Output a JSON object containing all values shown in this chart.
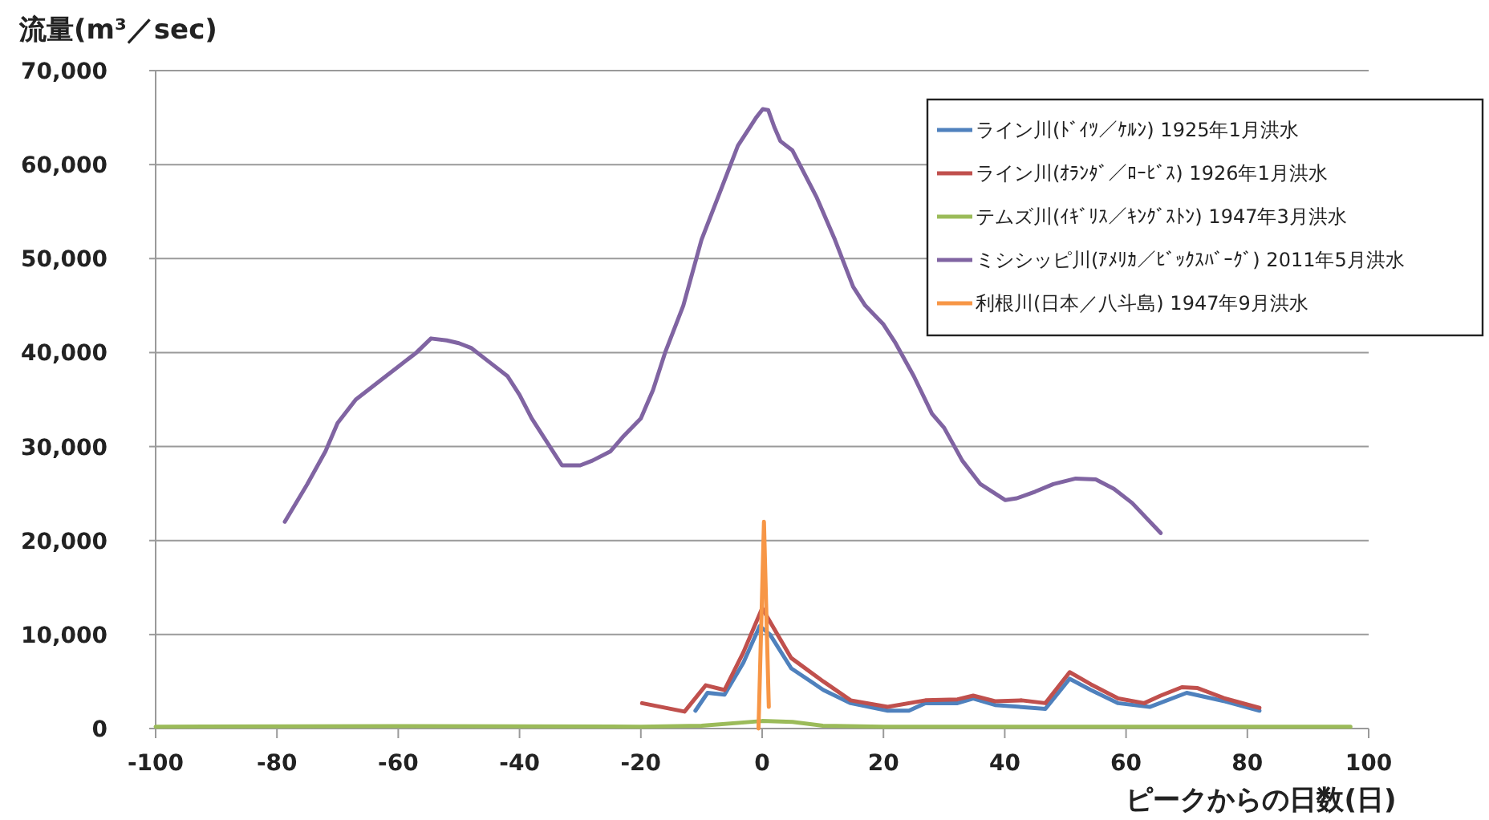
{
  "chart_data": {
    "type": "line",
    "ylabel": "流量(m³／sec)",
    "xlabel": "ピークからの日数(日)",
    "xlim": [
      -100,
      100
    ],
    "xticks": [
      -100,
      -80,
      -60,
      -40,
      -20,
      0,
      20,
      40,
      60,
      80,
      100
    ],
    "ylim": [
      0,
      70000
    ],
    "yticks": [
      0,
      {
        "value": 10000,
        "label": "10,000"
      },
      {
        "value": 20000,
        "label": "20,000"
      },
      {
        "value": 30000,
        "label": "30,000"
      },
      {
        "value": 40000,
        "label": "40,000"
      },
      {
        "value": 50000,
        "label": "50,000"
      },
      {
        "value": 60000,
        "label": "60,000"
      },
      {
        "value": 70000,
        "label": "70,000"
      }
    ],
    "grid": "y",
    "legend": "top right",
    "series": [
      {
        "name": "ライン川(ﾄﾞｲﾂ／ｹﾙﾝ) 1925年1月洪水",
        "color": "#4f81bd",
        "x": [
          -11,
          -9,
          -6.2,
          -3.1,
          -0.4,
          1.3,
          4.8,
          10.1,
          14.6,
          20.7,
          24.2,
          26.9,
          32.2,
          34.8,
          38.4,
          46.7,
          50.7,
          54.2,
          58.7,
          63.9,
          70,
          76.3,
          82
        ],
        "values": [
          1900,
          3800,
          3600,
          7000,
          10900,
          10000,
          6400,
          4100,
          2700,
          1900,
          1900,
          2700,
          2700,
          3200,
          2500,
          2100,
          5300,
          4100,
          2700,
          2300,
          3800,
          2900,
          1900
        ]
      },
      {
        "name": "ライン川(ｵﾗﾝﾀﾞ／ﾛｰﾋﾞｽ) 1926年1月洪水",
        "color": "#c0504d",
        "x": [
          -19.8,
          -12.8,
          -9.3,
          -6.2,
          -3.1,
          0,
          4.8,
          10.1,
          14.6,
          20.7,
          26.9,
          32.2,
          34.8,
          38.4,
          42.8,
          46.7,
          50.7,
          54.2,
          58.7,
          63,
          65.7,
          69.2,
          71.8,
          76.3,
          82
        ],
        "values": [
          2700,
          1800,
          4600,
          4100,
          8100,
          12800,
          7500,
          5000,
          3000,
          2300,
          3000,
          3100,
          3500,
          2900,
          3000,
          2700,
          6000,
          4700,
          3200,
          2700,
          3500,
          4400,
          4300,
          3200,
          2200
        ]
      },
      {
        "name": "テムズ川(ｲｷﾞﾘｽ／ｷﾝｸﾞｽﾄﾝ) 1947年3月洪水",
        "color": "#9bbb59",
        "x": [
          -100,
          -60,
          -20,
          -10,
          0,
          5,
          10,
          20,
          60,
          97
        ],
        "values": [
          200,
          250,
          200,
          300,
          800,
          700,
          300,
          200,
          200,
          200
        ]
      },
      {
        "name": "ミシシッピ川(ｱﾒﾘｶ／ﾋﾞｯｸｽﾊﾞｰｸﾞ) 2011年5月洪水",
        "color": "#8064a2",
        "x": [
          -78.7,
          -75,
          -72,
          -70,
          -67,
          -63,
          -60,
          -57,
          -54.6,
          -52,
          -50,
          -48,
          -45,
          -42,
          -40,
          -38,
          -36,
          -34,
          -33,
          -30,
          -28,
          -25,
          -23,
          -20,
          -18,
          -16,
          -13,
          -10,
          -7,
          -4,
          -2,
          -1,
          0.1,
          1,
          2,
          3,
          5,
          7,
          9,
          12,
          15,
          17,
          20,
          22,
          25,
          28,
          30,
          33,
          36,
          40.1,
          42,
          45,
          48,
          51.7,
          55,
          58,
          61,
          65.7
        ],
        "values": [
          22000,
          26000,
          29500,
          32500,
          35000,
          37000,
          38500,
          40000,
          41500,
          41300,
          41000,
          40500,
          39000,
          37500,
          35500,
          33000,
          31000,
          29000,
          28000,
          28000,
          28500,
          29500,
          31000,
          33000,
          36000,
          40000,
          45000,
          52000,
          57000,
          62000,
          64000,
          65000,
          65900,
          65800,
          64000,
          62500,
          61500,
          59000,
          56500,
          52000,
          47000,
          45000,
          43000,
          41000,
          37500,
          33500,
          32000,
          28500,
          26000,
          24300,
          24500,
          25200,
          26000,
          26600,
          26500,
          25500,
          24000,
          20800
        ]
      },
      {
        "name": "利根川(日本／八斗島) 1947年9月洪水",
        "color": "#f79646",
        "x": [
          -0.6,
          0.3,
          1.1
        ],
        "values": [
          0,
          22000,
          2300
        ]
      }
    ]
  }
}
